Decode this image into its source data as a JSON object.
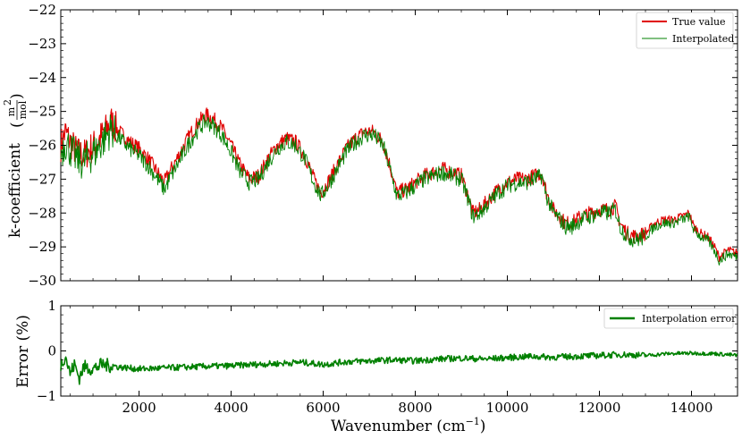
{
  "chart_data": [
    {
      "type": "line",
      "ylabel": "k-coefficient",
      "ylabel_unit_num": "m",
      "ylabel_unit_num_sup": "2",
      "ylabel_unit_den": "mol",
      "xlim": [
        300,
        15000
      ],
      "ylim": [
        -30,
        -22
      ],
      "yticks": [
        -30,
        -29,
        -28,
        -27,
        -26,
        -25,
        -24,
        -23,
        -22
      ],
      "ytick_labels": [
        "−30",
        "−29",
        "−28",
        "−27",
        "−26",
        "−25",
        "−24",
        "−23",
        "−22"
      ],
      "grid": false,
      "legend_position": "top-right",
      "series": [
        {
          "name": "True value",
          "color": "#e00000",
          "x": [
            300,
            400,
            500,
            650,
            800,
            950,
            1100,
            1250,
            1400,
            1500,
            1650,
            1800,
            2000,
            2200,
            2400,
            2550,
            2700,
            2900,
            3100,
            3300,
            3450,
            3600,
            3800,
            4000,
            4200,
            4400,
            4600,
            4800,
            5000,
            5200,
            5400,
            5600,
            5800,
            5950,
            6100,
            6300,
            6500,
            6700,
            6900,
            7100,
            7300,
            7450,
            7600,
            7800,
            8000,
            8200,
            8400,
            8600,
            8800,
            9000,
            9150,
            9250,
            9400,
            9600,
            9800,
            10000,
            10200,
            10400,
            10600,
            10750,
            10850,
            11000,
            11150,
            11250,
            11400,
            11600,
            11800,
            12000,
            12200,
            12350,
            12450,
            12600,
            12800,
            13000,
            13200,
            13400,
            13600,
            13800,
            13950,
            14050,
            14200,
            14350,
            14500,
            14600,
            14800,
            15000
          ],
          "values": [
            -26.0,
            -25.6,
            -25.9,
            -26.2,
            -26.3,
            -26.1,
            -25.9,
            -25.6,
            -25.3,
            -25.5,
            -25.7,
            -25.9,
            -26.1,
            -26.4,
            -26.8,
            -27.1,
            -26.7,
            -26.2,
            -25.7,
            -25.3,
            -25.1,
            -25.2,
            -25.5,
            -26.0,
            -26.6,
            -27.0,
            -26.9,
            -26.4,
            -26.0,
            -25.8,
            -25.9,
            -26.3,
            -27.0,
            -27.4,
            -27.1,
            -26.6,
            -26.1,
            -25.8,
            -25.6,
            -25.6,
            -25.9,
            -26.6,
            -27.4,
            -27.3,
            -27.1,
            -26.9,
            -26.8,
            -26.7,
            -26.8,
            -26.9,
            -27.5,
            -28.0,
            -27.9,
            -27.6,
            -27.3,
            -27.1,
            -27.0,
            -27.0,
            -26.9,
            -26.8,
            -27.4,
            -27.9,
            -28.1,
            -28.3,
            -28.3,
            -28.1,
            -28.0,
            -27.9,
            -27.9,
            -27.8,
            -28.3,
            -28.6,
            -28.7,
            -28.6,
            -28.3,
            -28.2,
            -28.2,
            -28.1,
            -28.0,
            -28.4,
            -28.6,
            -28.7,
            -29.0,
            -29.3,
            -29.1,
            -29.2
          ]
        },
        {
          "name": "Interpolated",
          "color": "#008000",
          "x": [
            300,
            400,
            500,
            650,
            800,
            950,
            1100,
            1250,
            1400,
            1500,
            1650,
            1800,
            2000,
            2200,
            2400,
            2550,
            2700,
            2900,
            3100,
            3300,
            3450,
            3600,
            3800,
            4000,
            4200,
            4400,
            4600,
            4800,
            5000,
            5200,
            5400,
            5600,
            5800,
            5950,
            6100,
            6300,
            6500,
            6700,
            6900,
            7100,
            7300,
            7450,
            7600,
            7800,
            8000,
            8200,
            8400,
            8600,
            8800,
            9000,
            9150,
            9250,
            9400,
            9600,
            9800,
            10000,
            10200,
            10400,
            10600,
            10750,
            10850,
            11000,
            11150,
            11250,
            11400,
            11600,
            11800,
            12000,
            12200,
            12350,
            12450,
            12600,
            12800,
            13000,
            13200,
            13400,
            13600,
            13800,
            13950,
            14050,
            14200,
            14350,
            14500,
            14600,
            14800,
            15000
          ],
          "values": [
            -26.2,
            -25.9,
            -26.1,
            -26.4,
            -26.5,
            -26.3,
            -26.1,
            -25.8,
            -25.5,
            -25.7,
            -25.9,
            -26.1,
            -26.3,
            -26.6,
            -27.0,
            -27.3,
            -26.9,
            -26.4,
            -25.9,
            -25.5,
            -25.3,
            -25.4,
            -25.7,
            -26.2,
            -26.8,
            -27.1,
            -27.0,
            -26.5,
            -26.1,
            -25.9,
            -26.0,
            -26.4,
            -27.1,
            -27.5,
            -27.2,
            -26.7,
            -26.2,
            -25.9,
            -25.7,
            -25.7,
            -26.0,
            -26.7,
            -27.5,
            -27.4,
            -27.2,
            -27.0,
            -26.9,
            -26.8,
            -26.9,
            -27.0,
            -27.6,
            -28.1,
            -28.0,
            -27.7,
            -27.4,
            -27.2,
            -27.1,
            -27.1,
            -27.0,
            -26.9,
            -27.5,
            -28.0,
            -28.2,
            -28.4,
            -28.4,
            -28.2,
            -28.1,
            -28.0,
            -28.0,
            -27.9,
            -28.4,
            -28.7,
            -28.8,
            -28.7,
            -28.4,
            -28.3,
            -28.3,
            -28.2,
            -28.1,
            -28.5,
            -28.7,
            -28.8,
            -29.1,
            -29.4,
            -29.2,
            -29.3
          ]
        }
      ]
    },
    {
      "type": "line",
      "ylabel": "Error (%)",
      "xlabel": "Wavenumber (cm",
      "xlabel_sup": "−1",
      "xlabel_close": ")",
      "xlim": [
        300,
        15000
      ],
      "ylim": [
        -1,
        1
      ],
      "xticks": [
        2000,
        4000,
        6000,
        8000,
        10000,
        12000,
        14000
      ],
      "xtick_labels": [
        "2000",
        "4000",
        "6000",
        "8000",
        "10000",
        "12000",
        "14000"
      ],
      "yticks": [
        -1,
        0,
        1
      ],
      "ytick_labels": [
        "−1",
        "0",
        "1"
      ],
      "grid": false,
      "legend_position": "top-right",
      "series": [
        {
          "name": "Interpolation error",
          "color": "#008000",
          "x": [
            300,
            400,
            500,
            600,
            700,
            800,
            1000,
            1200,
            1500,
            2000,
            2500,
            3000,
            3500,
            4000,
            4500,
            5000,
            5500,
            6000,
            6500,
            7000,
            7500,
            8000,
            8500,
            9000,
            9500,
            10000,
            10500,
            11000,
            11500,
            12000,
            12500,
            13000,
            13500,
            14000,
            14500,
            15000
          ],
          "values": [
            -0.3,
            -0.1,
            -0.5,
            -0.3,
            -0.6,
            -0.35,
            -0.4,
            -0.3,
            -0.35,
            -0.4,
            -0.38,
            -0.36,
            -0.34,
            -0.33,
            -0.3,
            -0.28,
            -0.25,
            -0.3,
            -0.24,
            -0.22,
            -0.2,
            -0.22,
            -0.18,
            -0.16,
            -0.18,
            -0.15,
            -0.12,
            -0.14,
            -0.12,
            -0.1,
            -0.08,
            -0.1,
            -0.06,
            -0.05,
            -0.06,
            -0.1
          ]
        }
      ]
    }
  ]
}
